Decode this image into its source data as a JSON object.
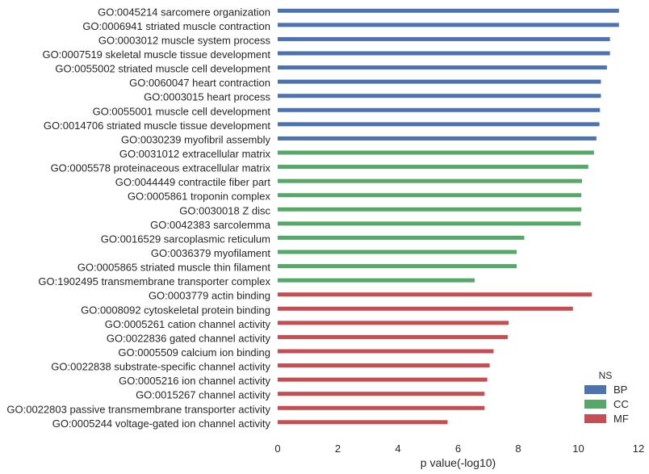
{
  "chart_data": {
    "type": "bar",
    "orientation": "horizontal",
    "xlabel": "p value(-log10)",
    "ylabel": "",
    "title": "",
    "xlim": [
      0,
      12
    ],
    "xticks": [
      0,
      2,
      4,
      6,
      8,
      10,
      12
    ],
    "grid": false,
    "legend": {
      "title": "NS",
      "placement": "bottom-right",
      "entries": [
        {
          "name": "BP",
          "color": "#4c72b0"
        },
        {
          "name": "CC",
          "color": "#55a868"
        },
        {
          "name": "MF",
          "color": "#c44e52"
        }
      ]
    },
    "bars": [
      {
        "label": "GO:0045214 sarcomere organization",
        "value": 11.35,
        "group": "BP"
      },
      {
        "label": "GO:0006941 striated muscle contraction",
        "value": 11.35,
        "group": "BP"
      },
      {
        "label": "GO:0003012 muscle system process",
        "value": 11.05,
        "group": "BP"
      },
      {
        "label": "GO:0007519 skeletal muscle tissue development",
        "value": 11.05,
        "group": "BP"
      },
      {
        "label": "GO:0055002 striated muscle cell development",
        "value": 10.95,
        "group": "BP"
      },
      {
        "label": "GO:0060047 heart contraction",
        "value": 10.75,
        "group": "BP"
      },
      {
        "label": "GO:0003015 heart process",
        "value": 10.75,
        "group": "BP"
      },
      {
        "label": "GO:0055001 muscle cell development",
        "value": 10.72,
        "group": "BP"
      },
      {
        "label": "GO:0014706 striated muscle tissue development",
        "value": 10.7,
        "group": "BP"
      },
      {
        "label": "GO:0030239 myofibril assembly",
        "value": 10.6,
        "group": "BP"
      },
      {
        "label": "GO:0031012 extracellular matrix",
        "value": 10.52,
        "group": "CC"
      },
      {
        "label": "GO:0005578 proteinaceous extracellular matrix",
        "value": 10.33,
        "group": "CC"
      },
      {
        "label": "GO:0044449 contractile fiber part",
        "value": 10.12,
        "group": "CC"
      },
      {
        "label": "GO:0005861 troponin complex",
        "value": 10.1,
        "group": "CC"
      },
      {
        "label": "GO:0030018 Z disc",
        "value": 10.1,
        "group": "CC"
      },
      {
        "label": "GO:0042383 sarcolemma",
        "value": 10.08,
        "group": "CC"
      },
      {
        "label": "GO:0016529 sarcoplasmic reticulum",
        "value": 8.2,
        "group": "CC"
      },
      {
        "label": "GO:0036379 myofilament",
        "value": 7.95,
        "group": "CC"
      },
      {
        "label": "GO:0005865 striated muscle thin filament",
        "value": 7.95,
        "group": "CC"
      },
      {
        "label": "GO:1902495 transmembrane transporter complex",
        "value": 6.55,
        "group": "CC"
      },
      {
        "label": "GO:0003779 actin binding",
        "value": 10.45,
        "group": "MF"
      },
      {
        "label": "GO:0008092 cytoskeletal protein binding",
        "value": 9.82,
        "group": "MF"
      },
      {
        "label": "GO:0005261 cation channel activity",
        "value": 7.68,
        "group": "MF"
      },
      {
        "label": "GO:0022836 gated channel activity",
        "value": 7.65,
        "group": "MF"
      },
      {
        "label": "GO:0005509 calcium ion binding",
        "value": 7.18,
        "group": "MF"
      },
      {
        "label": "GO:0022838 substrate-specific channel activity",
        "value": 7.05,
        "group": "MF"
      },
      {
        "label": "GO:0005216 ion channel activity",
        "value": 6.97,
        "group": "MF"
      },
      {
        "label": "GO:0015267 channel activity",
        "value": 6.88,
        "group": "MF"
      },
      {
        "label": "GO:0022803 passive transmembrane transporter activity",
        "value": 6.88,
        "group": "MF"
      },
      {
        "label": "GO:0005244 voltage-gated ion channel activity",
        "value": 5.65,
        "group": "MF"
      }
    ]
  }
}
